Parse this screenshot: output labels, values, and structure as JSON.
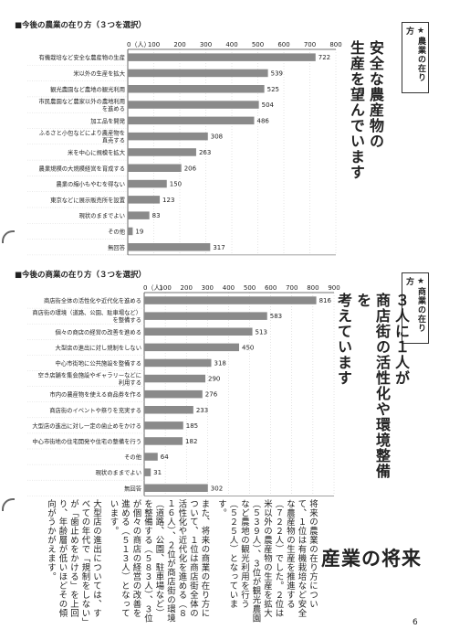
{
  "colors": {
    "bar": "#8a8a8a",
    "axis": "#444444",
    "grid": "#c8c8c8",
    "text": "#222222"
  },
  "chart_data": [
    {
      "type": "bar",
      "orientation": "horizontal",
      "title": "■今後の農業の在り方（３つを選択）",
      "unit_label": "0（人）",
      "xlim": [
        0,
        800
      ],
      "ticks": [
        "100",
        "200",
        "300",
        "400",
        "500",
        "600",
        "700",
        "800"
      ],
      "tick_values": [
        100,
        200,
        300,
        400,
        500,
        600,
        700,
        800
      ],
      "categories": [
        [
          "有機栽培など安全な農産物の生産"
        ],
        [
          "米以外の生産を拡大"
        ],
        [
          "観光農園など農地の観光利用"
        ],
        [
          "市民農園など農家以外の農地利用",
          "を進める"
        ],
        [
          "加工品を開発"
        ],
        [
          "ふるさと小包などにより農産物を",
          "直売する"
        ],
        [
          "米を中心に規模を拡大"
        ],
        [
          "農業規模の大規模経営を育成する"
        ],
        [
          "農業の縮小もやむを得ない"
        ],
        [
          "東京などに展示販売所を設置"
        ],
        [
          "現状のままでよい"
        ],
        [
          "その他"
        ],
        [
          "無回答"
        ]
      ],
      "values": [
        722,
        539,
        525,
        504,
        486,
        308,
        263,
        206,
        150,
        123,
        83,
        19,
        317
      ]
    },
    {
      "type": "bar",
      "orientation": "horizontal",
      "title": "■今後の商業の在り方（３つを選択）",
      "unit_label": "0（人）",
      "xlim": [
        0,
        900
      ],
      "ticks": [
        "100",
        "200",
        "300",
        "400",
        "500",
        "600",
        "700",
        "800",
        "900"
      ],
      "tick_values": [
        100,
        200,
        300,
        400,
        500,
        600,
        700,
        800,
        900
      ],
      "categories": [
        [
          "商店街全体の活性化や近代化を進める"
        ],
        [
          "商店街の環境（道路、公園、駐車場など）",
          "を整備する"
        ],
        [
          "個々の商店の経営の改善を進める"
        ],
        [
          "大型店の進出に対し規制をしない"
        ],
        [
          "中心市街地に公共施設を整備する"
        ],
        [
          "空き店舗を集会施設やギャラリーなどに",
          "利用する"
        ],
        [
          "市内の農産物を使える商品券を作る"
        ],
        [
          "商店街のイベントや祭りを充実する"
        ],
        [
          "大型店の進出に対し一定の歯止めをかける"
        ],
        [
          "中心市街地の住宅開発や住宅の整備を行う"
        ],
        [
          "その他"
        ],
        [
          "現状のままでよい"
        ],
        [
          "無回答"
        ]
      ],
      "values": [
        816,
        583,
        513,
        450,
        318,
        290,
        276,
        233,
        185,
        182,
        64,
        31,
        302
      ]
    }
  ],
  "section1": {
    "tag": "★農業の在り方",
    "heading_lines": [
      "安全な農産物の",
      "生産を望んでいます"
    ]
  },
  "section2": {
    "tag": "★商業の在り方",
    "heading_lines": [
      "３人に１人が",
      "商店街の活性化や環境整備を",
      "考えています"
    ]
  },
  "feature_title": "産業の将来",
  "prose_paragraphs": [
    "将来の農業の在り方につい て、１位は有機栽培など安全な農産物の生産を推進する（７２２人）でした。２位は米以外の農産物の生産を拡大（５３９人）、３位が観光農園など農地の観光利用を行う（５２５人）となっています。",
    "また、将来の商業の在り方について、１位は商店街全体の活性化や近代化を進める（８１６人）、２位が商店街の環境（道路、公園、駐車場など）を整備する（５８３人）、３位が個々の商店の経営の改善を進める（５１３人）となっています。",
    "大型店の進出については、すべての年代で「規制をしない」が「歯止めをかける」を上回り、年齢層が低いほどその傾向がうかがえます。"
  ],
  "page_number": "6"
}
